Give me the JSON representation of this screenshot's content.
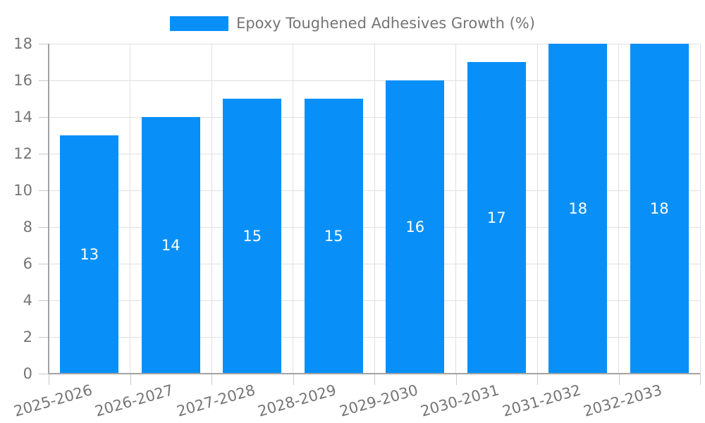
{
  "colors": {
    "bar": "#0890F8",
    "grid": "#e0e0e0",
    "axis": "#a3a3a3",
    "tick": "#c9c9c9",
    "text": "#757575",
    "bar_label": "#ffffff",
    "background": "#ffffff"
  },
  "chart_data": {
    "type": "bar",
    "title": "",
    "series_name": "Epoxy Toughened Adhesives Growth (%)",
    "categories": [
      "2025-2026",
      "2026-2027",
      "2027-2028",
      "2028-2029",
      "2029-2030",
      "2030-2031",
      "2031-2032",
      "2032-2033"
    ],
    "values": [
      13,
      14,
      15,
      15,
      16,
      17,
      18,
      18
    ],
    "xlabel": "",
    "ylabel": "",
    "ylim": [
      0,
      18
    ],
    "yticks": [
      0,
      2,
      4,
      6,
      8,
      10,
      12,
      14,
      16,
      18
    ],
    "grid": true,
    "legend_position": "top-center",
    "bar_labels_shown": true,
    "xtick_rotation": -16
  }
}
